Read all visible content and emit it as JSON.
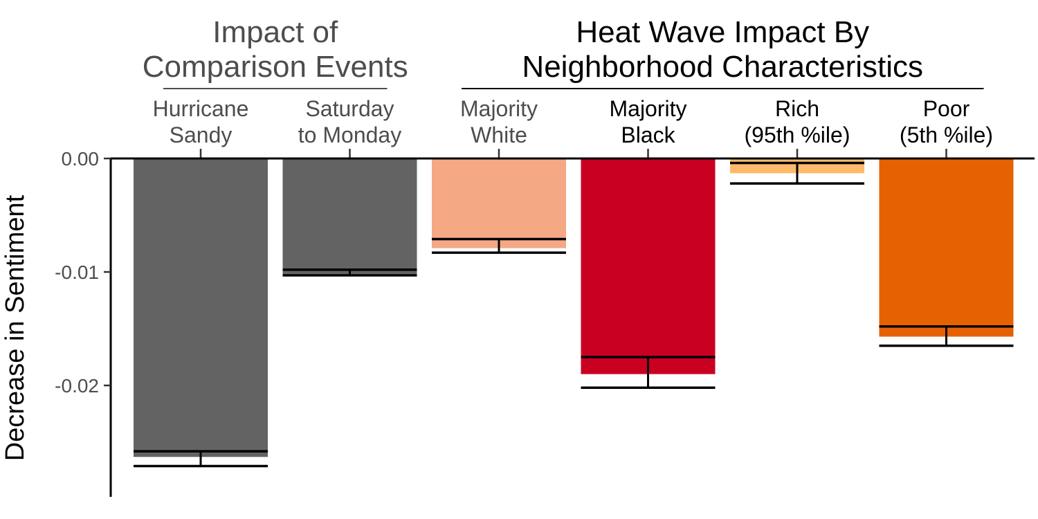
{
  "chart_data": {
    "type": "bar",
    "ylabel": "Decrease in Sentiment",
    "ylim": [
      -0.0295,
      0.0
    ],
    "y_ticks": [
      {
        "value": 0.0,
        "label": "0.00"
      },
      {
        "value": -0.01,
        "label": "-0.01"
      },
      {
        "value": -0.02,
        "label": "-0.02"
      }
    ],
    "groups": [
      {
        "title_lines": [
          "Impact of",
          "Comparison Events"
        ],
        "color": "#4d4d4d",
        "category_indices": [
          0,
          1
        ]
      },
      {
        "title_lines": [
          "Heat Wave Impact By",
          "Neighborhood Characteristics"
        ],
        "color": "#000000",
        "category_indices": [
          2,
          3,
          4,
          5
        ]
      }
    ],
    "categories": [
      {
        "label_lines": [
          "Hurricane",
          "Sandy"
        ],
        "value": -0.0263,
        "error_low": -0.0271,
        "error_high": -0.0258,
        "color": "#636363",
        "label_color": "#4d4d4d"
      },
      {
        "label_lines": [
          "Saturday",
          "to Monday"
        ],
        "value": -0.0102,
        "error_low": -0.0103,
        "error_high": -0.0098,
        "color": "#636363",
        "label_color": "#4d4d4d"
      },
      {
        "label_lines": [
          "Majority",
          "White"
        ],
        "value": -0.0079,
        "error_low": -0.0083,
        "error_high": -0.0071,
        "color": "#f4a884",
        "label_color": "#4d4d4d"
      },
      {
        "label_lines": [
          "Majority",
          "Black"
        ],
        "value": -0.019,
        "error_low": -0.0202,
        "error_high": -0.0175,
        "color": "#c90022",
        "label_color": "#000000"
      },
      {
        "label_lines": [
          "Rich",
          "(95th %ile)"
        ],
        "value": -0.0013,
        "error_low": -0.0022,
        "error_high": -0.0004,
        "color": "#fdba6a",
        "label_color": "#000000"
      },
      {
        "label_lines": [
          "Poor",
          "(5th %ile)"
        ],
        "value": -0.0157,
        "error_low": -0.0165,
        "error_high": -0.0148,
        "color": "#e66102",
        "label_color": "#000000"
      }
    ]
  }
}
